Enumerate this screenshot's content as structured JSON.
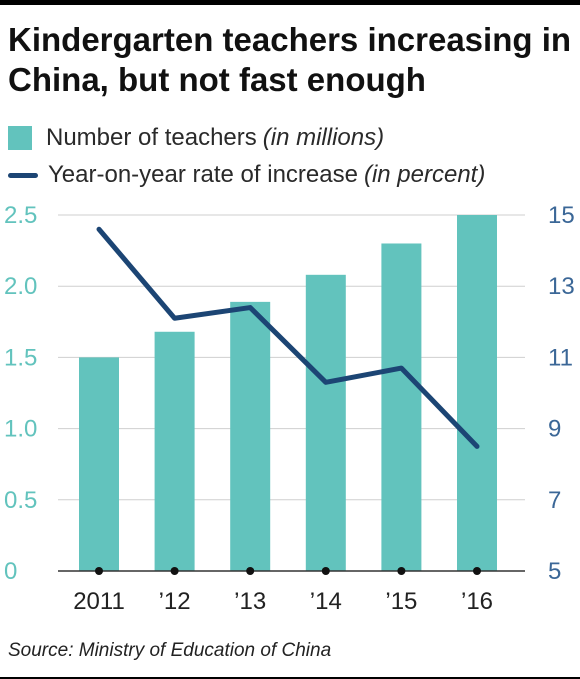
{
  "title": "Kindergarten teachers increasing in China, but not fast enough",
  "legend": {
    "bars_label": "Number of teachers",
    "bars_unit": "(in millions)",
    "line_label": "Year-on-year rate of increase",
    "line_unit": "(in percent)"
  },
  "source": "Source: Ministry of Education of China",
  "colors": {
    "bars": "#62c3bd",
    "line": "#1c4574",
    "left_axis_text": "#62c3bd",
    "right_axis_text": "#3b6797"
  },
  "chart_data": {
    "type": "bar+line",
    "categories": [
      "2011",
      "’12",
      "’13",
      "’14",
      "’15",
      "’16"
    ],
    "series": [
      {
        "name": "Number of teachers (in millions)",
        "type": "bar",
        "axis": "left",
        "values": [
          1.5,
          1.68,
          1.89,
          2.08,
          2.3,
          2.5
        ]
      },
      {
        "name": "Year-on-year rate of increase (in percent)",
        "type": "line",
        "axis": "right",
        "values": [
          14.6,
          12.1,
          12.4,
          10.3,
          10.7,
          8.5
        ]
      }
    ],
    "left_axis": {
      "ylim": [
        0,
        2.5
      ],
      "ticks": [
        "0",
        "0.5",
        "1.0",
        "1.5",
        "2.0",
        "2.5"
      ]
    },
    "right_axis": {
      "ylim": [
        5,
        15
      ],
      "ticks": [
        "5",
        "7",
        "9",
        "11",
        "13",
        "15"
      ]
    },
    "grid": true
  }
}
